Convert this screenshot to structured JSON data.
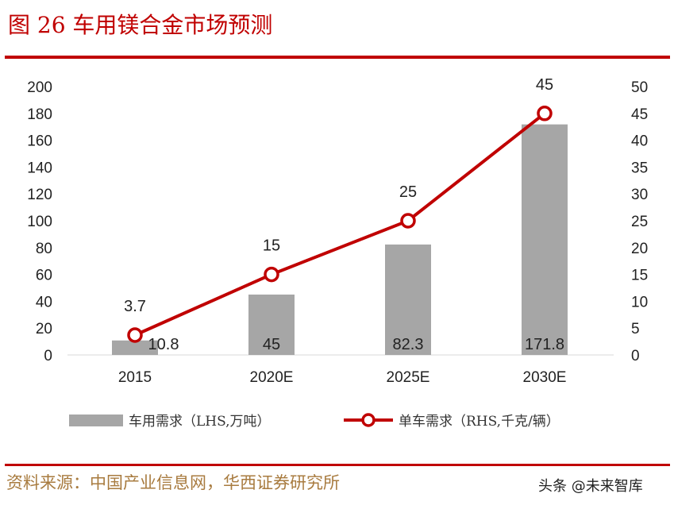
{
  "title": "图 26 车用镁合金市场预测",
  "source": "资料来源：中国产业信息网，华西证券研究所",
  "watermark": "头条 @未来智库",
  "colors": {
    "bar": "#a6a6a6",
    "line": "#c00000",
    "accent": "#c00000",
    "source_text": "#a87b3f"
  },
  "chart_data": {
    "type": "bar+line",
    "categories": [
      "2015",
      "2020E",
      "2025E",
      "2030E"
    ],
    "series": [
      {
        "name": "车用需求（LHS,万吨）",
        "type": "bar",
        "axis": "left",
        "values": [
          10.8,
          45,
          82.3,
          171.8
        ],
        "labels": [
          "10.8",
          "45",
          "82.3",
          "171.8"
        ]
      },
      {
        "name": "单车需求（RHS,千克/辆）",
        "type": "line",
        "axis": "right",
        "values": [
          3.7,
          15,
          25,
          45
        ],
        "labels": [
          "3.7",
          "15",
          "25",
          "45"
        ]
      }
    ],
    "y_left": {
      "min": 0,
      "max": 200,
      "step": 20
    },
    "y_right": {
      "min": 0,
      "max": 50,
      "step": 5
    },
    "grid": false,
    "legend": "bottom"
  }
}
